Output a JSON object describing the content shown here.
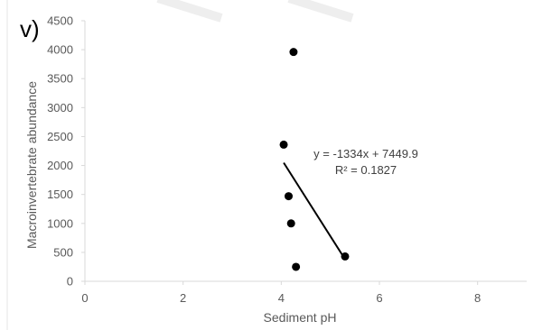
{
  "panel_label": "v)",
  "chart_data": {
    "type": "scatter",
    "xlabel": "Sediment pH",
    "ylabel": "Macroinvertebrate abundance",
    "xlim": [
      0,
      9
    ],
    "ylim": [
      0,
      4500
    ],
    "x_ticks": [
      0,
      2,
      4,
      6,
      8
    ],
    "y_ticks": [
      0,
      500,
      1000,
      1500,
      2000,
      2500,
      3000,
      3500,
      4000,
      4500
    ],
    "grid": false,
    "legend": "none",
    "points": [
      {
        "x": 4.25,
        "y": 3960
      },
      {
        "x": 4.05,
        "y": 2360
      },
      {
        "x": 4.15,
        "y": 1470
      },
      {
        "x": 4.2,
        "y": 1000
      },
      {
        "x": 4.3,
        "y": 250
      },
      {
        "x": 5.3,
        "y": 430
      }
    ],
    "trendline": {
      "type": "linear",
      "slope": -1334,
      "intercept": 7449.9,
      "x_range": [
        4.05,
        5.3
      ],
      "equation": "y = -1334x + 7449.9",
      "r_squared": "R² = 0.1827"
    },
    "colors": {
      "points": "#000000",
      "trendline": "#000000",
      "axis": "#d9d9d9",
      "text": "#595959"
    }
  }
}
